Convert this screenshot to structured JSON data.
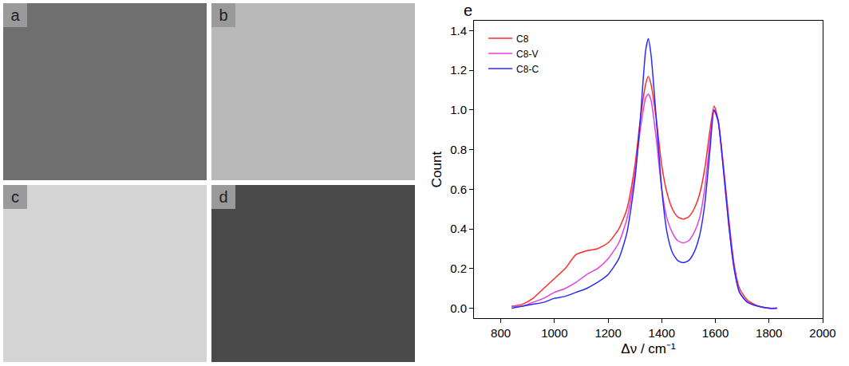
{
  "panels": [
    {
      "label": "a"
    },
    {
      "label": "b"
    },
    {
      "label": "c"
    },
    {
      "label": "d"
    }
  ],
  "chart_data": {
    "type": "line",
    "panel_label": "e",
    "x_label": "Δν / cm⁻¹",
    "y_label": "Count",
    "xlim": [
      700,
      2000
    ],
    "xticks": [
      800,
      1000,
      1200,
      1400,
      1600,
      1800,
      2000
    ],
    "ylim": [
      -0.05,
      1.45
    ],
    "yticks": [
      {
        "value": 0,
        "label": "0.0"
      },
      0.2,
      0.4,
      0.6,
      0.8,
      {
        "value": 1,
        "label": "1.0"
      },
      1.2,
      1.4
    ],
    "legend": "top left",
    "x": [
      840,
      880,
      920,
      960,
      1000,
      1040,
      1080,
      1120,
      1160,
      1200,
      1240,
      1270,
      1300,
      1320,
      1340,
      1350,
      1360,
      1380,
      1400,
      1420,
      1440,
      1460,
      1480,
      1500,
      1520,
      1540,
      1560,
      1580,
      1595,
      1610,
      1630,
      1650,
      1670,
      1690,
      1720,
      1760,
      1800,
      1830
    ],
    "series": [
      {
        "name": "C8",
        "color": "#ff2a2a",
        "values": [
          0.01,
          0.02,
          0.05,
          0.1,
          0.15,
          0.2,
          0.27,
          0.29,
          0.3,
          0.33,
          0.4,
          0.5,
          0.72,
          0.95,
          1.13,
          1.17,
          1.13,
          0.95,
          0.72,
          0.58,
          0.5,
          0.46,
          0.45,
          0.46,
          0.5,
          0.57,
          0.7,
          0.9,
          1.02,
          0.95,
          0.72,
          0.45,
          0.22,
          0.1,
          0.04,
          0.01,
          0.0,
          0.0
        ]
      },
      {
        "name": "C8-V",
        "color": "#e040e0",
        "values": [
          0.01,
          0.01,
          0.03,
          0.05,
          0.08,
          0.1,
          0.13,
          0.17,
          0.2,
          0.25,
          0.33,
          0.45,
          0.68,
          0.9,
          1.06,
          1.08,
          1.05,
          0.85,
          0.6,
          0.45,
          0.38,
          0.34,
          0.33,
          0.34,
          0.38,
          0.45,
          0.6,
          0.85,
          1.0,
          0.94,
          0.7,
          0.42,
          0.2,
          0.08,
          0.03,
          0.01,
          0.0,
          0.0
        ]
      },
      {
        "name": "C8-C",
        "color": "#2a2aff",
        "values": [
          0.0,
          0.01,
          0.02,
          0.03,
          0.05,
          0.06,
          0.08,
          0.1,
          0.13,
          0.17,
          0.25,
          0.38,
          0.65,
          0.95,
          1.3,
          1.36,
          1.28,
          0.95,
          0.6,
          0.38,
          0.28,
          0.24,
          0.23,
          0.24,
          0.28,
          0.36,
          0.52,
          0.8,
          1.0,
          0.95,
          0.7,
          0.42,
          0.2,
          0.08,
          0.03,
          0.01,
          0.0,
          0.0
        ]
      }
    ]
  }
}
